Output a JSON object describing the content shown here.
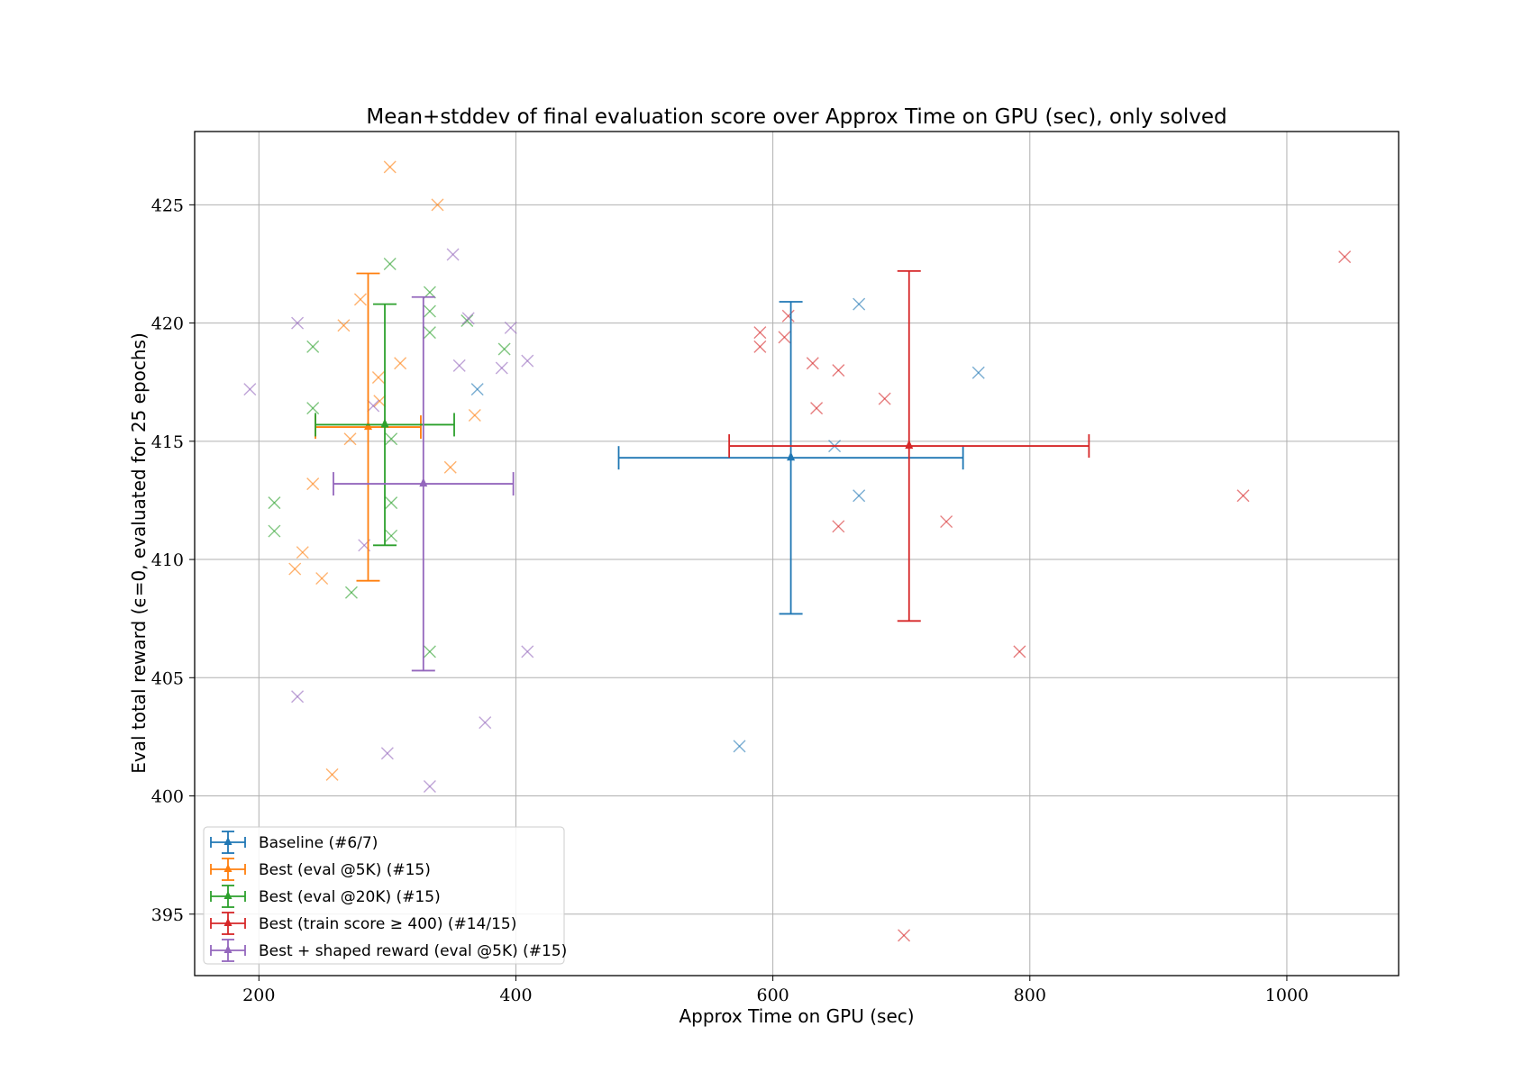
{
  "chart_data": {
    "type": "scatter",
    "title": "Mean+stddev of final evaluation score over Approx Time on GPU (sec), only solved",
    "xlabel": "Approx Time on GPU (sec)",
    "ylabel": "Eval total reward (ϵ=0, evaluated for 25 epochs)",
    "xlim": [
      150,
      1087
    ],
    "ylim": [
      392.4,
      428.1
    ],
    "xticks": [
      200,
      400,
      600,
      800,
      1000
    ],
    "yticks": [
      395,
      400,
      405,
      410,
      415,
      420,
      425
    ],
    "grid": true,
    "legend_position": "bottom-left",
    "series": [
      {
        "name": "Baseline (#6/7)",
        "color": "#1f77b4",
        "mean": {
          "x": 614,
          "y": 414.3
        },
        "x_err": 134,
        "y_err": 6.6,
        "points": [
          {
            "x": 370,
            "y": 417.2
          },
          {
            "x": 574,
            "y": 402.1
          },
          {
            "x": 648,
            "y": 414.8
          },
          {
            "x": 667,
            "y": 420.8
          },
          {
            "x": 667,
            "y": 412.7
          },
          {
            "x": 760,
            "y": 417.9
          }
        ]
      },
      {
        "name": "Best (eval @5K) (#15)",
        "color": "#ff7f0e",
        "mean": {
          "x": 285,
          "y": 415.6
        },
        "x_err": 41,
        "y_err": 6.5,
        "points": [
          {
            "x": 302,
            "y": 426.6
          },
          {
            "x": 339,
            "y": 425.0
          },
          {
            "x": 279,
            "y": 421.0
          },
          {
            "x": 266,
            "y": 419.9
          },
          {
            "x": 310,
            "y": 418.3
          },
          {
            "x": 293,
            "y": 417.7
          },
          {
            "x": 294,
            "y": 416.7
          },
          {
            "x": 368,
            "y": 416.1
          },
          {
            "x": 271,
            "y": 415.1
          },
          {
            "x": 349,
            "y": 413.9
          },
          {
            "x": 242,
            "y": 413.2
          },
          {
            "x": 234,
            "y": 410.3
          },
          {
            "x": 228,
            "y": 409.6
          },
          {
            "x": 249,
            "y": 409.2
          },
          {
            "x": 257,
            "y": 400.9
          }
        ]
      },
      {
        "name": "Best (eval @20K) (#15)",
        "color": "#2ca02c",
        "mean": {
          "x": 298,
          "y": 415.7
        },
        "x_err": 54,
        "y_err": 5.1,
        "points": [
          {
            "x": 302,
            "y": 422.5
          },
          {
            "x": 333,
            "y": 421.3
          },
          {
            "x": 333,
            "y": 420.5
          },
          {
            "x": 362,
            "y": 420.1
          },
          {
            "x": 333,
            "y": 419.6
          },
          {
            "x": 242,
            "y": 419.0
          },
          {
            "x": 391,
            "y": 418.9
          },
          {
            "x": 242,
            "y": 416.4
          },
          {
            "x": 303,
            "y": 415.1
          },
          {
            "x": 212,
            "y": 412.4
          },
          {
            "x": 303,
            "y": 412.4
          },
          {
            "x": 212,
            "y": 411.2
          },
          {
            "x": 303,
            "y": 411.0
          },
          {
            "x": 272,
            "y": 408.6
          },
          {
            "x": 333,
            "y": 406.1
          }
        ]
      },
      {
        "name": "Best (train score ≥ 400) (#14/15)",
        "color": "#d62728",
        "mean": {
          "x": 706,
          "y": 414.8
        },
        "x_err": 140,
        "y_err": 7.4,
        "points": [
          {
            "x": 1045,
            "y": 422.8
          },
          {
            "x": 612,
            "y": 420.3
          },
          {
            "x": 590,
            "y": 419.6
          },
          {
            "x": 609,
            "y": 419.4
          },
          {
            "x": 590,
            "y": 419.0
          },
          {
            "x": 631,
            "y": 418.3
          },
          {
            "x": 651,
            "y": 418.0
          },
          {
            "x": 687,
            "y": 416.8
          },
          {
            "x": 634,
            "y": 416.4
          },
          {
            "x": 966,
            "y": 412.7
          },
          {
            "x": 735,
            "y": 411.6
          },
          {
            "x": 651,
            "y": 411.4
          },
          {
            "x": 792,
            "y": 406.1
          },
          {
            "x": 702,
            "y": 394.1
          }
        ]
      },
      {
        "name": "Best + shaped reward (eval @5K) (#15)",
        "color": "#9467bd",
        "mean": {
          "x": 328,
          "y": 413.2
        },
        "x_err": 70,
        "y_err": 7.9,
        "points": [
          {
            "x": 351,
            "y": 422.9
          },
          {
            "x": 363,
            "y": 420.2
          },
          {
            "x": 230,
            "y": 420.0
          },
          {
            "x": 396,
            "y": 419.8
          },
          {
            "x": 409,
            "y": 418.4
          },
          {
            "x": 356,
            "y": 418.2
          },
          {
            "x": 389,
            "y": 418.1
          },
          {
            "x": 193,
            "y": 417.2
          },
          {
            "x": 289,
            "y": 416.5
          },
          {
            "x": 282,
            "y": 410.6
          },
          {
            "x": 409,
            "y": 406.1
          },
          {
            "x": 230,
            "y": 404.2
          },
          {
            "x": 376,
            "y": 403.1
          },
          {
            "x": 300,
            "y": 401.8
          },
          {
            "x": 333,
            "y": 400.4
          }
        ]
      }
    ]
  }
}
